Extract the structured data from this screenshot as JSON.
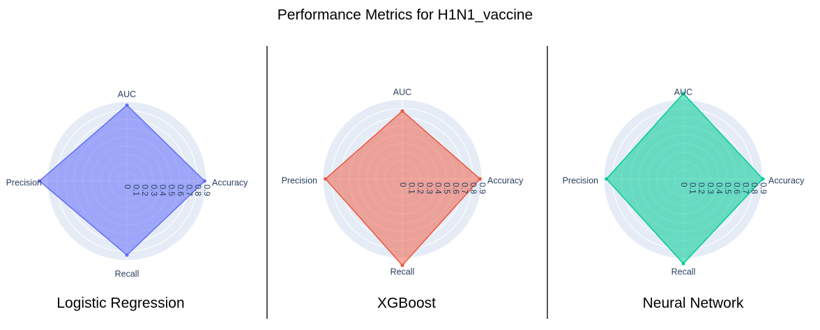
{
  "title": "Performance Metrics for H1N1_vaccine",
  "chart_data": [
    {
      "type": "radar",
      "name": "Logistic Regression",
      "color": "#636efa",
      "fill": "rgba(99,110,250,0.55)",
      "axes": [
        "Accuracy",
        "AUC",
        "Precision",
        "Recall"
      ],
      "values": [
        0.88,
        0.86,
        0.99,
        0.84
      ],
      "radial_ticks": [
        "0",
        "0.1",
        "0.2",
        "0.3",
        "0.4",
        "0.5",
        "0.6",
        "0.7",
        "0.8",
        "0.9"
      ],
      "rlim": [
        0,
        0.9
      ]
    },
    {
      "type": "radar",
      "name": "XGBoost",
      "color": "#ef553b",
      "fill": "rgba(239,85,59,0.5)",
      "axes": [
        "Accuracy",
        "AUC",
        "Precision",
        "Recall"
      ],
      "values": [
        0.88,
        0.77,
        0.87,
        0.98
      ],
      "radial_ticks": [
        "0",
        "0.1",
        "0.2",
        "0.3",
        "0.4",
        "0.5",
        "0.6",
        "0.7",
        "0.8",
        "0.9"
      ],
      "rlim": [
        0,
        0.9
      ]
    },
    {
      "type": "radar",
      "name": "Neural Network",
      "color": "#00cc96",
      "fill": "rgba(0,204,150,0.55)",
      "axes": [
        "Accuracy",
        "AUC",
        "Precision",
        "Recall"
      ],
      "values": [
        0.9,
        0.97,
        0.87,
        0.96
      ],
      "radial_ticks": [
        "0",
        "0.1",
        "0.2",
        "0.3",
        "0.4",
        "0.5",
        "0.6",
        "0.7",
        "0.8",
        "0.9"
      ],
      "rlim": [
        0,
        0.9
      ]
    }
  ]
}
